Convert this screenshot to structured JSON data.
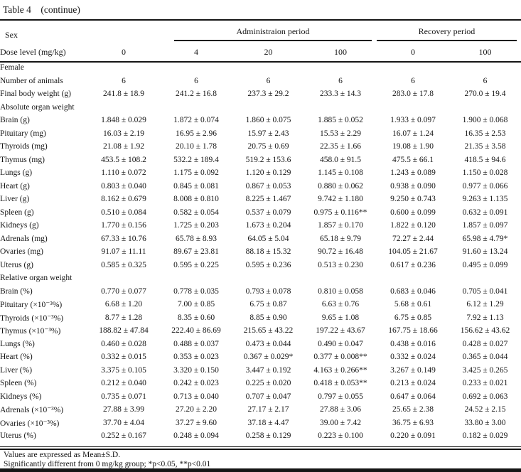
{
  "title": "Table 4    (continue)",
  "header": {
    "sex": "Sex",
    "dose_label": "Dose level (mg/kg)",
    "administration_period": "Administraion period",
    "recovery_period": "Recovery period",
    "dose_levels": [
      "0",
      "4",
      "20",
      "100",
      "0",
      "100"
    ]
  },
  "table": {
    "column_groups": [
      "Administraion period: 0, 4, 20, 100 mg/kg",
      "Recovery period: 0, 100 mg/kg"
    ],
    "rows": [
      {
        "label": "Female",
        "indent": 0,
        "values": []
      },
      {
        "label": "Number of animals",
        "indent": 1,
        "values": [
          "6",
          "6",
          "6",
          "6",
          "6",
          "6"
        ]
      },
      {
        "label": "Final body weight (g)",
        "indent": 1,
        "values": [
          "241.8 ± 18.9",
          "241.2 ± 16.8",
          "237.3 ± 29.2",
          "233.3 ± 14.3",
          "283.0 ± 17.8",
          "270.0 ± 19.4"
        ]
      },
      {
        "label": "Absolute organ weight",
        "indent": 1,
        "values": []
      },
      {
        "label": "Brain (g)",
        "indent": 2,
        "values": [
          "1.848 ± 0.029",
          "1.872 ± 0.074",
          "1.860 ± 0.075",
          "1.885 ± 0.052",
          "1.933 ± 0.097",
          "1.900 ± 0.068"
        ]
      },
      {
        "label": "Pituitary (mg)",
        "indent": 2,
        "values": [
          "16.03 ± 2.19",
          "16.95 ± 2.96",
          "15.97 ± 2.43",
          "15.53 ± 2.29",
          "16.07 ± 1.24",
          "16.35 ± 2.53"
        ]
      },
      {
        "label": "Thyroids (mg)",
        "indent": 2,
        "values": [
          "21.08 ± 1.92",
          "20.10 ± 1.78",
          "20.75 ± 0.69",
          "22.35 ± 1.66",
          "19.08 ± 1.90",
          "21.35 ± 3.58"
        ]
      },
      {
        "label": "Thymus (mg)",
        "indent": 2,
        "values": [
          "453.5 ± 108.2",
          "532.2 ± 189.4",
          "519.2 ± 153.6",
          "458.0 ± 91.5",
          "475.5 ± 66.1",
          "418.5 ± 94.6"
        ]
      },
      {
        "label": "Lungs (g)",
        "indent": 2,
        "values": [
          "1.110 ± 0.072",
          "1.175 ± 0.092",
          "1.120 ± 0.129",
          "1.145 ± 0.108",
          "1.243 ± 0.089",
          "1.150 ± 0.028"
        ]
      },
      {
        "label": "Heart (g)",
        "indent": 2,
        "values": [
          "0.803 ± 0.040",
          "0.845 ± 0.081",
          "0.867 ± 0.053",
          "0.880 ± 0.062",
          "0.938 ± 0.090",
          "0.977 ± 0.066"
        ]
      },
      {
        "label": "Liver (g)",
        "indent": 2,
        "values": [
          "8.162 ± 0.679",
          "8.008 ± 0.810",
          "8.225 ± 1.467",
          "9.742 ± 1.180",
          "9.250 ± 0.743",
          "9.263 ± 1.135"
        ]
      },
      {
        "label": "Spleen (g)",
        "indent": 2,
        "values": [
          "0.510 ± 0.084",
          "0.582 ± 0.054",
          "0.537 ± 0.079",
          "0.975 ± 0.116**",
          "0.600 ± 0.099",
          "0.632 ± 0.091"
        ]
      },
      {
        "label": "Kidneys (g)",
        "indent": 2,
        "values": [
          "1.770 ± 0.156",
          "1.725 ± 0.203",
          "1.673 ± 0.204",
          "1.857 ± 0.170",
          "1.822 ± 0.120",
          "1.857 ± 0.097"
        ]
      },
      {
        "label": "Adrenals (mg)",
        "indent": 2,
        "values": [
          "67.33 ± 10.76",
          "65.78 ± 8.93",
          "64.05 ± 5.04",
          "65.18 ± 9.79",
          "72.27 ± 2.44",
          "65.98 ± 4.79*"
        ]
      },
      {
        "label": "Ovaries (mg)",
        "indent": 2,
        "values": [
          "91.07 ± 11.11",
          "89.67 ± 23.81",
          "88.18 ± 15.32",
          "90.72 ± 16.48",
          "104.05 ± 21.67",
          "91.60 ± 13.24"
        ]
      },
      {
        "label": "Uterus (g)",
        "indent": 2,
        "values": [
          "0.585 ± 0.325",
          "0.595 ± 0.225",
          "0.595 ± 0.236",
          "0.513 ± 0.230",
          "0.617 ± 0.236",
          "0.495 ± 0.099"
        ]
      },
      {
        "label": "Relative organ weight",
        "indent": 0,
        "values": []
      },
      {
        "label": "Brain (%)",
        "indent": 2,
        "values": [
          "0.770 ± 0.077",
          "0.778 ± 0.035",
          "0.793 ± 0.078",
          "0.810 ± 0.058",
          "0.683 ± 0.046",
          "0.705 ± 0.041"
        ]
      },
      {
        "label": "Pituitary (×10⁻³%)",
        "indent": 2,
        "values": [
          "6.68 ± 1.20",
          "7.00 ± 0.85",
          "6.75 ± 0.87",
          "6.63 ± 0.76",
          "5.68 ± 0.61",
          "6.12 ± 1.29"
        ]
      },
      {
        "label": "Thyroids (×10⁻³%)",
        "indent": 2,
        "values": [
          "8.77 ± 1.28",
          "8.35 ± 0.60",
          "8.85 ± 0.90",
          "9.65 ± 1.08",
          "6.75 ± 0.85",
          "7.92 ± 1.13"
        ]
      },
      {
        "label": "Thymus (×10⁻³%)",
        "indent": 2,
        "values": [
          "188.82 ± 47.84",
          "222.40 ± 86.69",
          "215.65 ± 43.22",
          "197.22 ± 43.67",
          "167.75 ± 18.66",
          "156.62 ± 43.62"
        ]
      },
      {
        "label": "Lungs (%)",
        "indent": 2,
        "values": [
          "0.460 ± 0.028",
          "0.488 ± 0.037",
          "0.473 ± 0.044",
          "0.490 ± 0.047",
          "0.438 ± 0.016",
          "0.428 ± 0.027"
        ]
      },
      {
        "label": "Heart (%)",
        "indent": 2,
        "values": [
          "0.332 ± 0.015",
          "0.353 ± 0.023",
          "0.367 ± 0.029*",
          "0.377 ± 0.008**",
          "0.332 ± 0.024",
          "0.365 ± 0.044"
        ]
      },
      {
        "label": "Liver (%)",
        "indent": 2,
        "values": [
          "3.375 ± 0.105",
          "3.320 ± 0.150",
          "3.447 ± 0.192",
          "4.163 ± 0.266**",
          "3.267 ± 0.149",
          "3.425 ± 0.265"
        ]
      },
      {
        "label": "Spleen (%)",
        "indent": 2,
        "values": [
          "0.212 ± 0.040",
          "0.242 ± 0.023",
          "0.225 ± 0.020",
          "0.418 ± 0.053**",
          "0.213 ± 0.024",
          "0.233 ± 0.021"
        ]
      },
      {
        "label": "Kidneys (%)",
        "indent": 2,
        "values": [
          "0.735 ± 0.071",
          "0.713 ± 0.040",
          "0.707 ± 0.047",
          "0.797 ± 0.055",
          "0.647 ± 0.064",
          "0.692 ± 0.063"
        ]
      },
      {
        "label": "Adrenals (×10⁻³%)",
        "indent": 2,
        "values": [
          "27.88 ± 3.99",
          "27.20 ± 2.20",
          "27.17 ± 2.17",
          "27.88 ± 3.06",
          "25.65 ± 2.38",
          "24.52 ± 2.15"
        ]
      },
      {
        "label": "Ovaries (×10⁻³%)",
        "indent": 2,
        "values": [
          "37.70 ± 4.04",
          "37.27 ± 9.60",
          "37.18 ± 4.47",
          "39.00 ± 7.42",
          "36.75 ± 6.93",
          "33.80 ± 3.00"
        ]
      },
      {
        "label": "Uterus (%)",
        "indent": 2,
        "values": [
          "0.252 ± 0.167",
          "0.248 ± 0.094",
          "0.258 ± 0.129",
          "0.223 ± 0.100",
          "0.220 ± 0.091",
          "0.182 ± 0.029"
        ]
      }
    ]
  },
  "footnotes": {
    "line1": "Values are expressed as Mean±S.D.",
    "line2": "Significantly different from 0 mg/kg group; *p<0.05, **p<0.01"
  },
  "colors": {
    "text": "#151515",
    "rule": "#151515",
    "background": "#ffffff"
  }
}
